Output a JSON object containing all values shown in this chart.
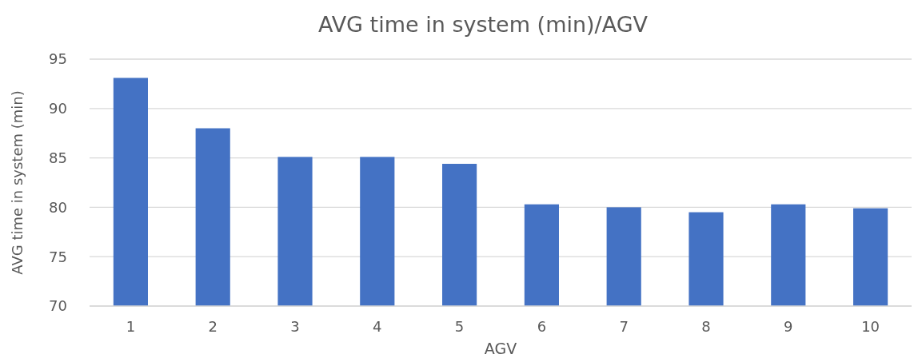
{
  "chart_data": {
    "type": "bar",
    "title": "AVG time in system (min)/AGV",
    "xlabel": "AGV",
    "ylabel": "AVG time in system (min)",
    "categories": [
      "1",
      "2",
      "3",
      "4",
      "5",
      "6",
      "7",
      "8",
      "9",
      "10"
    ],
    "values": [
      93.1,
      88.0,
      85.1,
      85.1,
      84.4,
      80.3,
      80.0,
      79.5,
      80.3,
      79.9
    ],
    "color": "#4472c4",
    "ylim": [
      70,
      95
    ],
    "yticks": [
      70,
      75,
      80,
      85,
      90,
      95
    ],
    "grid": "y"
  }
}
